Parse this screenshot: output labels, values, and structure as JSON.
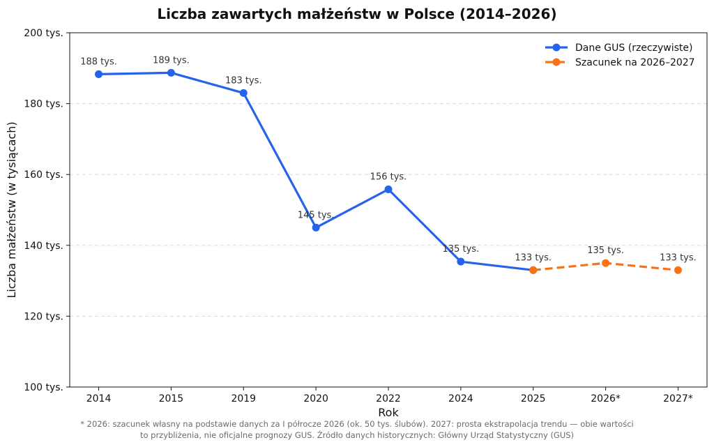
{
  "chart_data": {
    "type": "line",
    "title": "Liczba zawartych małżeństw w Polsce (2014–2026)",
    "xlabel": "Rok",
    "ylabel": "Liczba małżeństw (w tysiącach)",
    "ylim": [
      100,
      200
    ],
    "yticks": [
      {
        "value": 100,
        "label": "100 tys."
      },
      {
        "value": 120,
        "label": "120 tys."
      },
      {
        "value": 140,
        "label": "140 tys."
      },
      {
        "value": 160,
        "label": "160 tys."
      },
      {
        "value": 180,
        "label": "180 tys."
      },
      {
        "value": 200,
        "label": "200 tys."
      }
    ],
    "categories": [
      "2014",
      "2015",
      "2019",
      "2020",
      "2022",
      "2024",
      "2025",
      "2026*",
      "2027*"
    ],
    "grid": "horizontal-dashed",
    "legend_position": "top-right",
    "series": [
      {
        "name": "Dane GUS (rzeczywiste)",
        "color": "#2563eb",
        "style": "solid",
        "points": [
          {
            "x": "2014",
            "y": 188.3,
            "label": "188 tys."
          },
          {
            "x": "2015",
            "y": 188.7,
            "label": "189 tys."
          },
          {
            "x": "2019",
            "y": 183.0,
            "label": "183 tys."
          },
          {
            "x": "2020",
            "y": 145.0,
            "label": "145 tys."
          },
          {
            "x": "2022",
            "y": 155.8,
            "label": "156 tys."
          },
          {
            "x": "2024",
            "y": 135.4,
            "label": "135 tys."
          },
          {
            "x": "2025",
            "y": 133.0,
            "label": "133 tys."
          }
        ]
      },
      {
        "name": "Szacunek na 2026–2027",
        "color": "#f97316",
        "style": "dashed",
        "points": [
          {
            "x": "2025",
            "y": 133.0,
            "label": ""
          },
          {
            "x": "2026*",
            "y": 135.0,
            "label": "135 tys."
          },
          {
            "x": "2027*",
            "y": 133.0,
            "label": "133 tys."
          }
        ]
      }
    ]
  },
  "footnote": {
    "line1": "* 2026: szacunek własny na podstawie danych za I półrocze 2026 (ok. 50 tys. ślubów). 2027: prosta ekstrapolacja trendu — obie wartości",
    "line2": "to przybliżenia, nie oficjalne prognozy GUS. Źródło danych historycznych: Główny Urząd Statystyczny (GUS)"
  }
}
